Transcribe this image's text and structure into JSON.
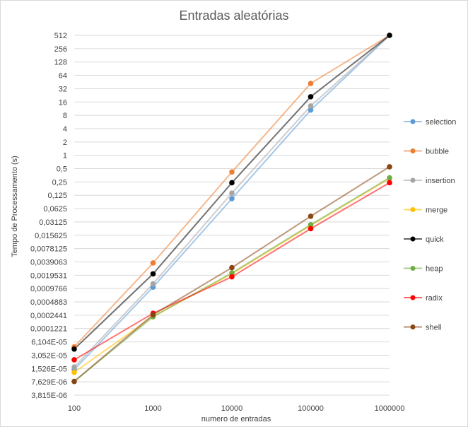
{
  "chart_data": {
    "type": "line",
    "title": "Entradas aleatórias",
    "xlabel": "numero de entradas",
    "ylabel": "Tempo de Processamento (s)",
    "x_scale": "log10",
    "y_scale": "log2",
    "x": [
      100,
      1000,
      10000,
      100000,
      1000000
    ],
    "x_tick_labels": [
      "100",
      "1000",
      "10000",
      "100000",
      "1000000"
    ],
    "y_tick_labels": [
      "3,815E-06",
      "7,629E-06",
      "1,526E-05",
      "3,052E-05",
      "6,104E-05",
      "0,0001221",
      "0,0002441",
      "0,0004883",
      "0,0009766",
      "0,0019531",
      "0,0039063",
      "0,0078125",
      "0,015625",
      "0,03125",
      "0,0625",
      "0,125",
      "0,25",
      "0,5",
      "1",
      "2",
      "4",
      "8",
      "16",
      "32",
      "64",
      "128",
      "256",
      "512"
    ],
    "ylim": [
      3.815e-06,
      512
    ],
    "grid": "horizontal",
    "legend_position": "right",
    "series": [
      {
        "name": "selection",
        "color": "#5b9bd5",
        "values": [
          1.45e-05,
          0.00105,
          0.105,
          10.5,
          512
        ]
      },
      {
        "name": "bubble",
        "color": "#ed7d31",
        "values": [
          4.7e-05,
          0.0037,
          0.42,
          42,
          512
        ]
      },
      {
        "name": "insertion",
        "color": "#a5a5a5",
        "values": [
          1.65e-05,
          0.00125,
          0.14,
          13,
          512
        ]
      },
      {
        "name": "merge",
        "color": "#ffc000",
        "values": [
          1.25e-05,
          0.00023,
          0.0021,
          0.026,
          0.3
        ]
      },
      {
        "name": "quick",
        "color": "#000000",
        "values": [
          4.2e-05,
          0.0021,
          0.24,
          21,
          512
        ]
      },
      {
        "name": "heap",
        "color": "#70ad47",
        "values": [
          7.8e-06,
          0.000225,
          0.0022,
          0.027,
          0.31
        ]
      },
      {
        "name": "radix",
        "color": "#ff0000",
        "values": [
          2.4e-05,
          0.00027,
          0.0018,
          0.022,
          0.24
        ]
      },
      {
        "name": "shell",
        "color": "#8b4513",
        "values": [
          7.8e-06,
          0.00025,
          0.0029,
          0.042,
          0.55
        ]
      }
    ]
  }
}
